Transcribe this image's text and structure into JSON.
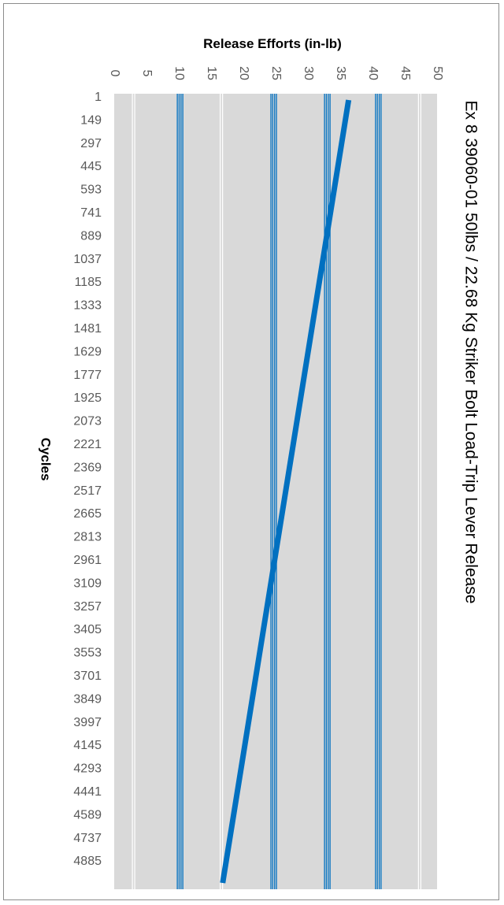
{
  "chart_data": {
    "type": "line",
    "orientation": "vertical-category",
    "title": "Ex 8 39060-01 50lbs / 22.68 Kg Striker Bolt Load-Trip Lever Release",
    "xlabel": "Release Efforts (in-lb)",
    "ylabel": "Cycles",
    "value_axis": {
      "min": 0,
      "max": 50,
      "step": 5,
      "ticks": [
        "0",
        "5",
        "10",
        "15",
        "20",
        "25",
        "30",
        "35",
        "40",
        "45",
        "50"
      ]
    },
    "categories": [
      "1",
      "149",
      "297",
      "445",
      "593",
      "741",
      "889",
      "1037",
      "1185",
      "1333",
      "1481",
      "1629",
      "1777",
      "1925",
      "2073",
      "2221",
      "2369",
      "2517",
      "2665",
      "2813",
      "2961",
      "3109",
      "3257",
      "3405",
      "3553",
      "3701",
      "3849",
      "3997",
      "4145",
      "4293",
      "4441",
      "4589",
      "4737",
      "4885"
    ],
    "category_range": [
      1,
      5000
    ],
    "series": [
      {
        "color": "#0070c0",
        "x": [
          1,
          5000
        ],
        "values": [
          36.3,
          16.8
        ]
      }
    ],
    "vertical_bands": [
      {
        "value": 3,
        "color": "#ffffff"
      },
      {
        "value": 10.2,
        "color": "#0070c0"
      },
      {
        "value": 16.6,
        "color": "#ffffff"
      },
      {
        "value": 24.7,
        "color": "#0070c0"
      },
      {
        "value": 33.0,
        "color": "#0070c0"
      },
      {
        "value": 40.9,
        "color": "#0070c0"
      },
      {
        "value": 47.3,
        "color": "#ffffff"
      }
    ],
    "grid": true,
    "legend": "none",
    "colors": {
      "plot_background": "#d9d9d9",
      "series": "#0070c0",
      "tick_text": "#595959"
    }
  }
}
